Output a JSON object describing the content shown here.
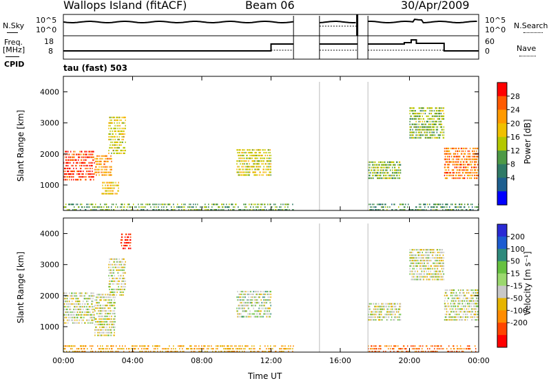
{
  "header": {
    "station": "Wallops Island (fitACF)",
    "beam": "Beam 06",
    "date": "30/Apr/2009"
  },
  "panels": {
    "noise_left": "N.Sky",
    "noise_right": "N.Search",
    "noise_ticks_left": [
      "10^5",
      "10^0"
    ],
    "noise_ticks_right": [
      "10^5",
      "10^0"
    ],
    "freq_left_top": "Freq.",
    "freq_left_bottom": "[MHz]",
    "freq_ticks": [
      "18",
      "8"
    ],
    "nave_ticks": [
      "60",
      "0"
    ],
    "nave_label": "Nave",
    "cpid_label": "CPID",
    "cpid_value": "tau (fast) 503"
  },
  "power_colorbar": {
    "label": "Power [dB]",
    "ticks": [
      "28",
      "24",
      "20",
      "16",
      "12",
      "8",
      "4"
    ],
    "colors": [
      "#ff0000",
      "#ff5a00",
      "#ff9a00",
      "#f0c000",
      "#b4c800",
      "#4e9a46",
      "#2f7a66",
      "#1e5f8f",
      "#0000ff"
    ]
  },
  "velocity_colorbar": {
    "label": "Velocity [m s⁻¹]",
    "ticks": [
      "200",
      "100",
      "50",
      "15",
      "-15",
      "-50",
      "-100",
      "-200"
    ],
    "colors": [
      "#2a2ad4",
      "#1d5cd1",
      "#2e8a7c",
      "#66c140",
      "#9bd86e",
      "#c8c8c8",
      "#e6b400",
      "#ff8c00",
      "#ff4500",
      "#ff0000"
    ]
  },
  "chart_data": [
    {
      "type": "heatmap",
      "name": "power",
      "xlabel": "Time UT",
      "ylabel": "Slant Range [km]",
      "x_ticks": [
        "00:00",
        "04:00",
        "08:00",
        "12:00",
        "16:00",
        "20:00",
        "00:00"
      ],
      "y_ticks": [
        1000,
        2000,
        3000,
        4000
      ],
      "xlim_hours": [
        0,
        24
      ],
      "ylim_km": [
        180,
        4500
      ],
      "data_gaps_hours": [
        [
          13.3,
          14.8
        ],
        [
          17.0,
          17.6
        ]
      ],
      "echo_regions": [
        {
          "t0": 0.0,
          "t1": 1.8,
          "r0": 1150,
          "r1": 2100,
          "power_db": 26
        },
        {
          "t0": 1.8,
          "t1": 2.8,
          "r0": 1300,
          "r1": 2000,
          "power_db": 20
        },
        {
          "t0": 2.2,
          "t1": 3.2,
          "r0": 700,
          "r1": 1100,
          "power_db": 16
        },
        {
          "t0": 2.6,
          "t1": 3.6,
          "r0": 2000,
          "r1": 3200,
          "power_db": 14
        },
        {
          "t0": 10.0,
          "t1": 12.0,
          "r0": 1300,
          "r1": 2200,
          "power_db": 14
        },
        {
          "t0": 17.6,
          "t1": 19.5,
          "r0": 1200,
          "r1": 1800,
          "power_db": 10
        },
        {
          "t0": 20.0,
          "t1": 22.0,
          "r0": 2500,
          "r1": 3500,
          "power_db": 10
        },
        {
          "t0": 22.0,
          "t1": 24.0,
          "r0": 1200,
          "r1": 2200,
          "power_db": 22
        },
        {
          "t0": 0.0,
          "t1": 13.3,
          "r0": 180,
          "r1": 400,
          "power_db": 8
        },
        {
          "t0": 17.6,
          "t1": 24.0,
          "r0": 180,
          "r1": 400,
          "power_db": 6
        }
      ]
    },
    {
      "type": "heatmap",
      "name": "velocity",
      "xlabel": "Time UT",
      "ylabel": "Slant Range [km]",
      "x_ticks": [
        "00:00",
        "04:00",
        "08:00",
        "12:00",
        "16:00",
        "20:00",
        "00:00"
      ],
      "y_ticks": [
        1000,
        2000,
        3000,
        4000
      ],
      "xlim_hours": [
        0,
        24
      ],
      "ylim_km": [
        180,
        4500
      ],
      "data_gaps_hours": [
        [
          13.3,
          14.8
        ],
        [
          17.0,
          17.6
        ]
      ],
      "echo_regions": [
        {
          "t0": 0.0,
          "t1": 1.8,
          "r0": 1100,
          "r1": 2100,
          "velocity": 0
        },
        {
          "t0": 1.8,
          "t1": 3.0,
          "r0": 700,
          "r1": 2100,
          "velocity": 0
        },
        {
          "t0": 2.6,
          "t1": 3.6,
          "r0": 2000,
          "r1": 3200,
          "velocity": -5
        },
        {
          "t0": 3.3,
          "t1": 3.9,
          "r0": 3500,
          "r1": 4000,
          "velocity": -150
        },
        {
          "t0": 10.0,
          "t1": 12.0,
          "r0": 1300,
          "r1": 2200,
          "velocity": 5
        },
        {
          "t0": 17.6,
          "t1": 19.5,
          "r0": 1200,
          "r1": 1800,
          "velocity": 0
        },
        {
          "t0": 20.0,
          "t1": 22.0,
          "r0": 2500,
          "r1": 3500,
          "velocity": 0
        },
        {
          "t0": 22.0,
          "t1": 24.0,
          "r0": 1200,
          "r1": 2200,
          "velocity": 0
        },
        {
          "t0": 0.0,
          "t1": 13.3,
          "r0": 180,
          "r1": 400,
          "velocity": -50
        },
        {
          "t0": 17.6,
          "t1": 24.0,
          "r0": 180,
          "r1": 400,
          "velocity": -100
        }
      ]
    }
  ]
}
